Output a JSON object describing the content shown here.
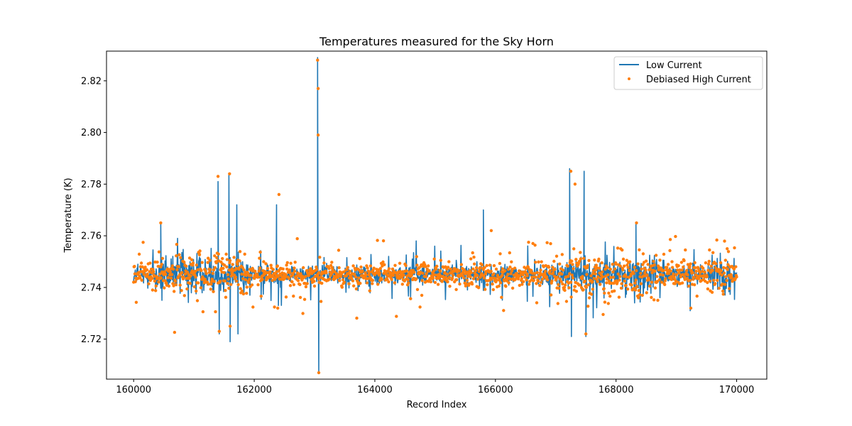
{
  "chart_data": {
    "type": "line",
    "title": "Temperatures measured for the Sky Horn",
    "xlabel": "Record Index",
    "ylabel": "Temperature (K)",
    "xlim": [
      159550,
      170500
    ],
    "ylim": [
      2.7045,
      2.8315
    ],
    "xticks": [
      160000,
      162000,
      164000,
      166000,
      168000,
      170000
    ],
    "yticks": [
      2.72,
      2.74,
      2.76,
      2.78,
      2.8,
      2.82
    ],
    "grid": false,
    "legend_position": "top-right",
    "x_range": [
      160000,
      170000
    ],
    "baseline": 2.745,
    "series": [
      {
        "name": "Low Current",
        "style": "line",
        "color": "#1f77b4",
        "notable_points": [
          {
            "x": 160070,
            "y": 2.749
          },
          {
            "x": 160450,
            "y": 2.765
          },
          {
            "x": 160470,
            "y": 2.735
          },
          {
            "x": 161400,
            "y": 2.781
          },
          {
            "x": 161420,
            "y": 2.722
          },
          {
            "x": 161580,
            "y": 2.784
          },
          {
            "x": 161600,
            "y": 2.719
          },
          {
            "x": 161710,
            "y": 2.772
          },
          {
            "x": 161730,
            "y": 2.722
          },
          {
            "x": 162370,
            "y": 2.772
          },
          {
            "x": 162400,
            "y": 2.733
          },
          {
            "x": 163050,
            "y": 2.829
          },
          {
            "x": 163070,
            "y": 2.707
          },
          {
            "x": 165800,
            "y": 2.77
          },
          {
            "x": 167230,
            "y": 2.786
          },
          {
            "x": 167260,
            "y": 2.721
          },
          {
            "x": 167470,
            "y": 2.785
          },
          {
            "x": 167500,
            "y": 2.721
          },
          {
            "x": 168330,
            "y": 2.765
          },
          {
            "x": 169230,
            "y": 2.731
          }
        ]
      },
      {
        "name": "Debiased High Current",
        "style": "scatter",
        "color": "#ff7f0e",
        "notable_points": [
          {
            "x": 160450,
            "y": 2.765
          },
          {
            "x": 161400,
            "y": 2.783
          },
          {
            "x": 161420,
            "y": 2.723
          },
          {
            "x": 161590,
            "y": 2.784
          },
          {
            "x": 161600,
            "y": 2.725
          },
          {
            "x": 162410,
            "y": 2.776
          },
          {
            "x": 162390,
            "y": 2.732
          },
          {
            "x": 163050,
            "y": 2.828
          },
          {
            "x": 163060,
            "y": 2.817
          },
          {
            "x": 163060,
            "y": 2.799
          },
          {
            "x": 163070,
            "y": 2.707
          },
          {
            "x": 165930,
            "y": 2.762
          },
          {
            "x": 167250,
            "y": 2.785
          },
          {
            "x": 167320,
            "y": 2.78
          },
          {
            "x": 167500,
            "y": 2.722
          },
          {
            "x": 168340,
            "y": 2.765
          },
          {
            "x": 169240,
            "y": 2.732
          }
        ]
      }
    ]
  }
}
